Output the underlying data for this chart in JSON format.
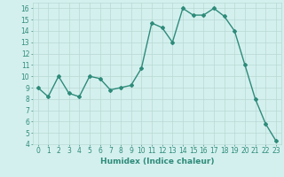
{
  "xlabel": "Humidex (Indice chaleur)",
  "x": [
    0,
    1,
    2,
    3,
    4,
    5,
    6,
    7,
    8,
    9,
    10,
    11,
    12,
    13,
    14,
    15,
    16,
    17,
    18,
    19,
    20,
    21,
    22,
    23
  ],
  "y": [
    9.0,
    8.2,
    10.0,
    8.5,
    8.2,
    10.0,
    9.8,
    8.8,
    9.0,
    9.2,
    10.7,
    14.7,
    14.3,
    13.0,
    16.0,
    15.4,
    15.4,
    16.0,
    15.3,
    14.0,
    11.0,
    8.0,
    5.8,
    4.3
  ],
  "line_color": "#2e8b7a",
  "marker": "D",
  "marker_size": 2,
  "linewidth": 1.0,
  "bg_color": "#d4f0ee",
  "grid_color": "#b8d8d4",
  "ylim": [
    4,
    16.5
  ],
  "yticks": [
    4,
    5,
    6,
    7,
    8,
    9,
    10,
    11,
    12,
    13,
    14,
    15,
    16
  ],
  "xticks": [
    0,
    1,
    2,
    3,
    4,
    5,
    6,
    7,
    8,
    9,
    10,
    11,
    12,
    13,
    14,
    15,
    16,
    17,
    18,
    19,
    20,
    21,
    22,
    23
  ],
  "tick_color": "#2e8b7a",
  "label_color": "#2e8b7a",
  "xlabel_fontsize": 6.5,
  "tick_fontsize": 5.5
}
